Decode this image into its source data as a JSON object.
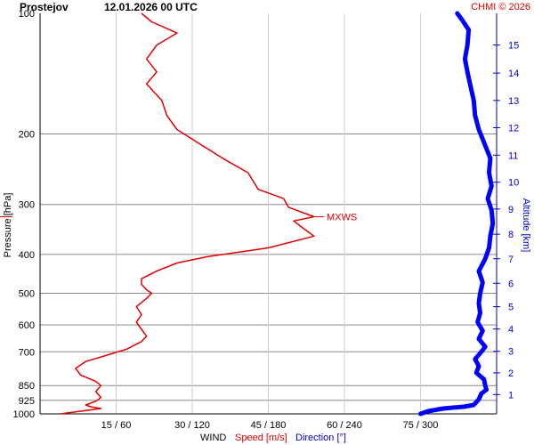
{
  "header": {
    "station": "Prostejov",
    "datetime": "12.01.2026 00 UTC",
    "credit": "CHMI © 2026"
  },
  "colors": {
    "speed": "#e00000",
    "direction": "#0000ff",
    "altitude_axis": "#0000cc",
    "grid": "#808080"
  },
  "chart_data": {
    "type": "line",
    "y_axis": {
      "label": "Pressure [hPa]",
      "scale": "log",
      "range": [
        1000,
        100
      ],
      "ticks": [
        100,
        200,
        300,
        400,
        500,
        600,
        700,
        850,
        925,
        1000
      ]
    },
    "x_axis": {
      "title": "WIND",
      "speed_label": "Speed [m/s]",
      "direction_label": "Direction [°]",
      "tick_labels": [
        "15 / 60",
        "30 / 120",
        "45 / 180",
        "60 / 240",
        "75 / 300"
      ],
      "speed_ticks": [
        15,
        30,
        45,
        60,
        75
      ],
      "direction_ticks": [
        60,
        120,
        180,
        240,
        300
      ],
      "speed_range": [
        0,
        90
      ],
      "direction_range": [
        0,
        360
      ]
    },
    "altitude_axis": {
      "label": "Altitude [km]",
      "ticks": [
        {
          "km": 1,
          "p": 895
        },
        {
          "km": 2,
          "p": 790
        },
        {
          "km": 3,
          "p": 698
        },
        {
          "km": 4,
          "p": 614
        },
        {
          "km": 5,
          "p": 540
        },
        {
          "km": 6,
          "p": 472
        },
        {
          "km": 7,
          "p": 410
        },
        {
          "km": 8,
          "p": 356
        },
        {
          "km": 9,
          "p": 308
        },
        {
          "km": 10,
          "p": 264
        },
        {
          "km": 11,
          "p": 226
        },
        {
          "km": 12,
          "p": 193
        },
        {
          "km": 13,
          "p": 165
        },
        {
          "km": 14,
          "p": 141
        },
        {
          "km": 15,
          "p": 120
        }
      ]
    },
    "max_wind": {
      "label": "MXWS",
      "p": 322,
      "speed": 53.5
    },
    "series": [
      {
        "name": "Speed [m/s]",
        "points": [
          [
            1000,
            4
          ],
          [
            985,
            8
          ],
          [
            970,
            12
          ],
          [
            960,
            10
          ],
          [
            950,
            9
          ],
          [
            930,
            11
          ],
          [
            910,
            12
          ],
          [
            880,
            11
          ],
          [
            850,
            12
          ],
          [
            830,
            11
          ],
          [
            800,
            8
          ],
          [
            770,
            7
          ],
          [
            740,
            9
          ],
          [
            715,
            13
          ],
          [
            690,
            17
          ],
          [
            660,
            20
          ],
          [
            640,
            21
          ],
          [
            615,
            20
          ],
          [
            590,
            19
          ],
          [
            565,
            20
          ],
          [
            540,
            19
          ],
          [
            515,
            21
          ],
          [
            500,
            22
          ],
          [
            490,
            21
          ],
          [
            475,
            20
          ],
          [
            460,
            20
          ],
          [
            440,
            23
          ],
          [
            420,
            27
          ],
          [
            405,
            33
          ],
          [
            385,
            45
          ],
          [
            360,
            54
          ],
          [
            345,
            52
          ],
          [
            330,
            50
          ],
          [
            322,
            54
          ],
          [
            305,
            49
          ],
          [
            290,
            48
          ],
          [
            275,
            43
          ],
          [
            250,
            41
          ],
          [
            230,
            36
          ],
          [
            210,
            31
          ],
          [
            195,
            27
          ],
          [
            180,
            25
          ],
          [
            165,
            24
          ],
          [
            150,
            21
          ],
          [
            140,
            23
          ],
          [
            130,
            21
          ],
          [
            120,
            23
          ],
          [
            112,
            27
          ],
          [
            105,
            22
          ],
          [
            100,
            20
          ]
        ]
      },
      {
        "name": "Direction [°]",
        "points": [
          [
            1000,
            300
          ],
          [
            985,
            306
          ],
          [
            970,
            318
          ],
          [
            960,
            334
          ],
          [
            950,
            342
          ],
          [
            920,
            346
          ],
          [
            890,
            348
          ],
          [
            870,
            352
          ],
          [
            850,
            351
          ],
          [
            820,
            350
          ],
          [
            790,
            344
          ],
          [
            760,
            346
          ],
          [
            730,
            343
          ],
          [
            700,
            348
          ],
          [
            680,
            351
          ],
          [
            650,
            346
          ],
          [
            620,
            349
          ],
          [
            590,
            345
          ],
          [
            560,
            347
          ],
          [
            530,
            346
          ],
          [
            500,
            347
          ],
          [
            470,
            349
          ],
          [
            440,
            346
          ],
          [
            410,
            351
          ],
          [
            385,
            354
          ],
          [
            360,
            355
          ],
          [
            335,
            357
          ],
          [
            310,
            356
          ],
          [
            290,
            353
          ],
          [
            270,
            356
          ],
          [
            250,
            354
          ],
          [
            230,
            355
          ],
          [
            210,
            350
          ],
          [
            195,
            346
          ],
          [
            180,
            343
          ],
          [
            165,
            342
          ],
          [
            150,
            339
          ],
          [
            140,
            337
          ],
          [
            130,
            335
          ],
          [
            120,
            337
          ],
          [
            110,
            338
          ],
          [
            104,
            333
          ],
          [
            100,
            329
          ]
        ]
      }
    ]
  }
}
